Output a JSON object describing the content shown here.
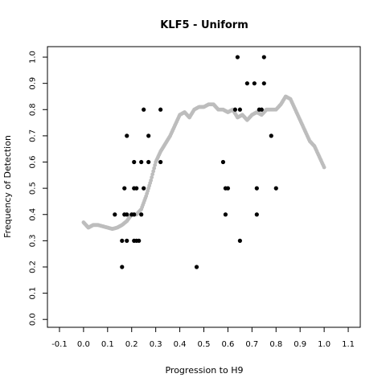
{
  "chart_data": {
    "type": "scatter",
    "title": "KLF5 - Uniform",
    "xlabel": "Progression to H9",
    "ylabel": "Frequency of Detection",
    "xlim": [
      -0.15,
      1.15
    ],
    "ylim": [
      -0.03,
      1.04
    ],
    "xticks": [
      "-0.1",
      "0.0",
      "0.1",
      "0.2",
      "0.3",
      "0.4",
      "0.5",
      "0.6",
      "0.7",
      "0.8",
      "0.9",
      "1.0",
      "1.1"
    ],
    "yticks": [
      "0.0",
      "0.1",
      "0.2",
      "0.3",
      "0.4",
      "0.5",
      "0.6",
      "0.7",
      "0.8",
      "0.9",
      "1.0"
    ],
    "grid": false,
    "colors": {
      "points": "#000000",
      "smooth": "#bdbdbd"
    },
    "series": [
      {
        "style": "points",
        "x": [
          0.13,
          0.16,
          0.16,
          0.17,
          0.17,
          0.18,
          0.18,
          0.18,
          0.2,
          0.21,
          0.21,
          0.21,
          0.21,
          0.22,
          0.22,
          0.23,
          0.24,
          0.24,
          0.25,
          0.25,
          0.27,
          0.27,
          0.32,
          0.32,
          0.47,
          0.58,
          0.59,
          0.59,
          0.6,
          0.63,
          0.64,
          0.65,
          0.65,
          0.68,
          0.71,
          0.72,
          0.72,
          0.73,
          0.74,
          0.75,
          0.75,
          0.78,
          0.8
        ],
        "y": [
          0.4,
          0.3,
          0.2,
          0.4,
          0.5,
          0.3,
          0.4,
          0.7,
          0.4,
          0.3,
          0.4,
          0.5,
          0.6,
          0.3,
          0.5,
          0.3,
          0.4,
          0.6,
          0.8,
          0.5,
          0.7,
          0.6,
          0.6,
          0.8,
          0.2,
          0.6,
          0.4,
          0.5,
          0.5,
          0.8,
          1.0,
          0.8,
          0.3,
          0.9,
          0.9,
          0.4,
          0.5,
          0.8,
          0.8,
          0.9,
          1.0,
          0.7,
          0.5
        ]
      },
      {
        "style": "smooth",
        "x": [
          0.0,
          0.02,
          0.04,
          0.06,
          0.08,
          0.1,
          0.12,
          0.14,
          0.16,
          0.18,
          0.2,
          0.22,
          0.24,
          0.26,
          0.28,
          0.3,
          0.32,
          0.34,
          0.36,
          0.38,
          0.4,
          0.42,
          0.44,
          0.46,
          0.48,
          0.5,
          0.52,
          0.54,
          0.56,
          0.58,
          0.6,
          0.62,
          0.64,
          0.66,
          0.68,
          0.7,
          0.72,
          0.74,
          0.76,
          0.78,
          0.8,
          0.82,
          0.84,
          0.86,
          0.88,
          0.9,
          0.92,
          0.94,
          0.96,
          0.98,
          1.0
        ],
        "y": [
          0.37,
          0.35,
          0.36,
          0.36,
          0.355,
          0.35,
          0.345,
          0.35,
          0.36,
          0.375,
          0.4,
          0.4,
          0.42,
          0.47,
          0.53,
          0.6,
          0.64,
          0.67,
          0.7,
          0.74,
          0.78,
          0.79,
          0.77,
          0.8,
          0.81,
          0.81,
          0.82,
          0.82,
          0.8,
          0.8,
          0.79,
          0.8,
          0.77,
          0.78,
          0.76,
          0.78,
          0.79,
          0.78,
          0.8,
          0.8,
          0.8,
          0.82,
          0.85,
          0.84,
          0.8,
          0.76,
          0.72,
          0.68,
          0.66,
          0.62,
          0.58
        ]
      }
    ]
  }
}
